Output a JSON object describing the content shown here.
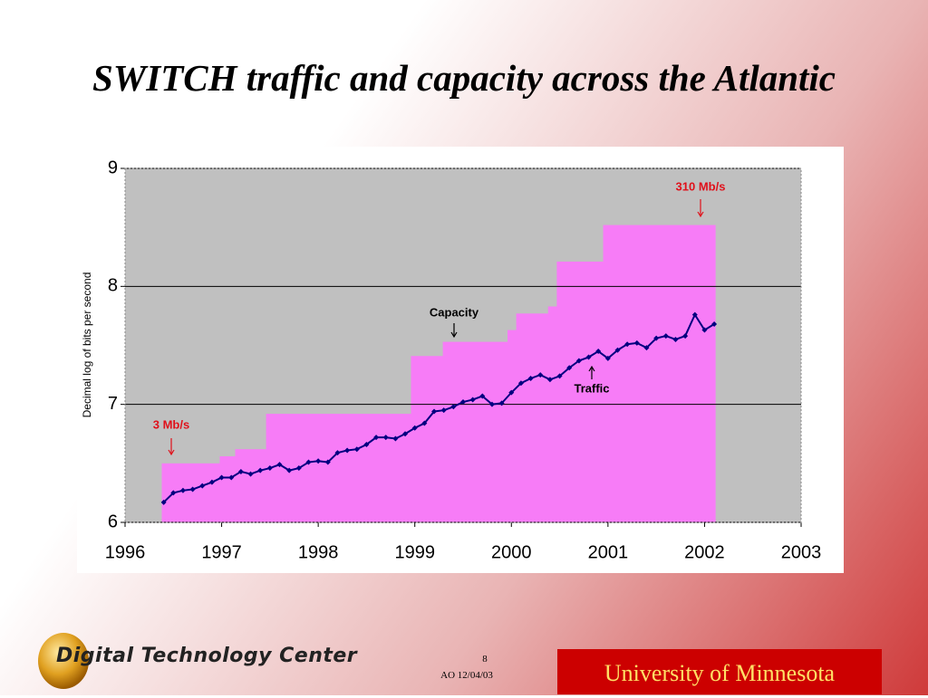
{
  "title": "SWITCH traffic and capacity across the Atlantic",
  "chart_data": {
    "type": "step-area-line",
    "ylabel": "Decimal log of bits per second",
    "xlim": [
      1996,
      2003
    ],
    "xticks": [
      1996,
      1997,
      1998,
      1999,
      2000,
      2001,
      2002,
      2003
    ],
    "ylim": [
      6,
      9
    ],
    "yticks": [
      6,
      7,
      8,
      9
    ],
    "grid": true,
    "capacity": {
      "name": "Capacity",
      "color": "#f77cf7",
      "bins": [
        1996.38,
        1996.98,
        1997.14,
        1997.46,
        1998.96,
        1999.29,
        1999.96,
        2000.05,
        2000.38,
        2000.47,
        2000.95,
        2002.11
      ],
      "values": [
        6.5,
        6.56,
        6.62,
        6.92,
        7.41,
        7.53,
        7.63,
        7.77,
        7.83,
        8.21,
        8.52
      ]
    },
    "traffic": {
      "name": "Traffic",
      "color": "#000080",
      "x": [
        1996.4,
        1996.5,
        1996.6,
        1996.7,
        1996.8,
        1996.9,
        1997.0,
        1997.1,
        1997.2,
        1997.3,
        1997.4,
        1997.5,
        1997.6,
        1997.7,
        1997.8,
        1997.9,
        1998.0,
        1998.1,
        1998.2,
        1998.3,
        1998.4,
        1998.5,
        1998.6,
        1998.7,
        1998.8,
        1998.9,
        1999.0,
        1999.1,
        1999.2,
        1999.3,
        1999.4,
        1999.5,
        1999.6,
        1999.7,
        1999.8,
        1999.9,
        2000.0,
        2000.1,
        2000.2,
        2000.3,
        2000.4,
        2000.5,
        2000.6,
        2000.7,
        2000.8,
        2000.9,
        2001.0,
        2001.1,
        2001.2,
        2001.3,
        2001.4,
        2001.5,
        2001.6,
        2001.7,
        2001.8,
        2001.9,
        2002.0,
        2002.1
      ],
      "values": [
        6.17,
        6.25,
        6.27,
        6.28,
        6.31,
        6.34,
        6.38,
        6.38,
        6.43,
        6.41,
        6.44,
        6.46,
        6.49,
        6.44,
        6.46,
        6.51,
        6.52,
        6.51,
        6.59,
        6.61,
        6.62,
        6.66,
        6.72,
        6.72,
        6.71,
        6.75,
        6.8,
        6.84,
        6.94,
        6.95,
        6.98,
        7.02,
        7.04,
        7.07,
        7.0,
        7.01,
        7.1,
        7.18,
        7.22,
        7.25,
        7.21,
        7.24,
        7.31,
        7.37,
        7.4,
        7.45,
        7.39,
        7.46,
        7.51,
        7.52,
        7.48,
        7.56,
        7.58,
        7.55,
        7.58,
        7.76,
        7.63,
        7.68
      ]
    },
    "annotations": [
      "310 Mb/s",
      "3 Mb/s"
    ]
  },
  "footer": {
    "logo": "Digital Technology Center",
    "page": "8",
    "date": "AO 12/04/03",
    "university": "University of Minnesota"
  }
}
